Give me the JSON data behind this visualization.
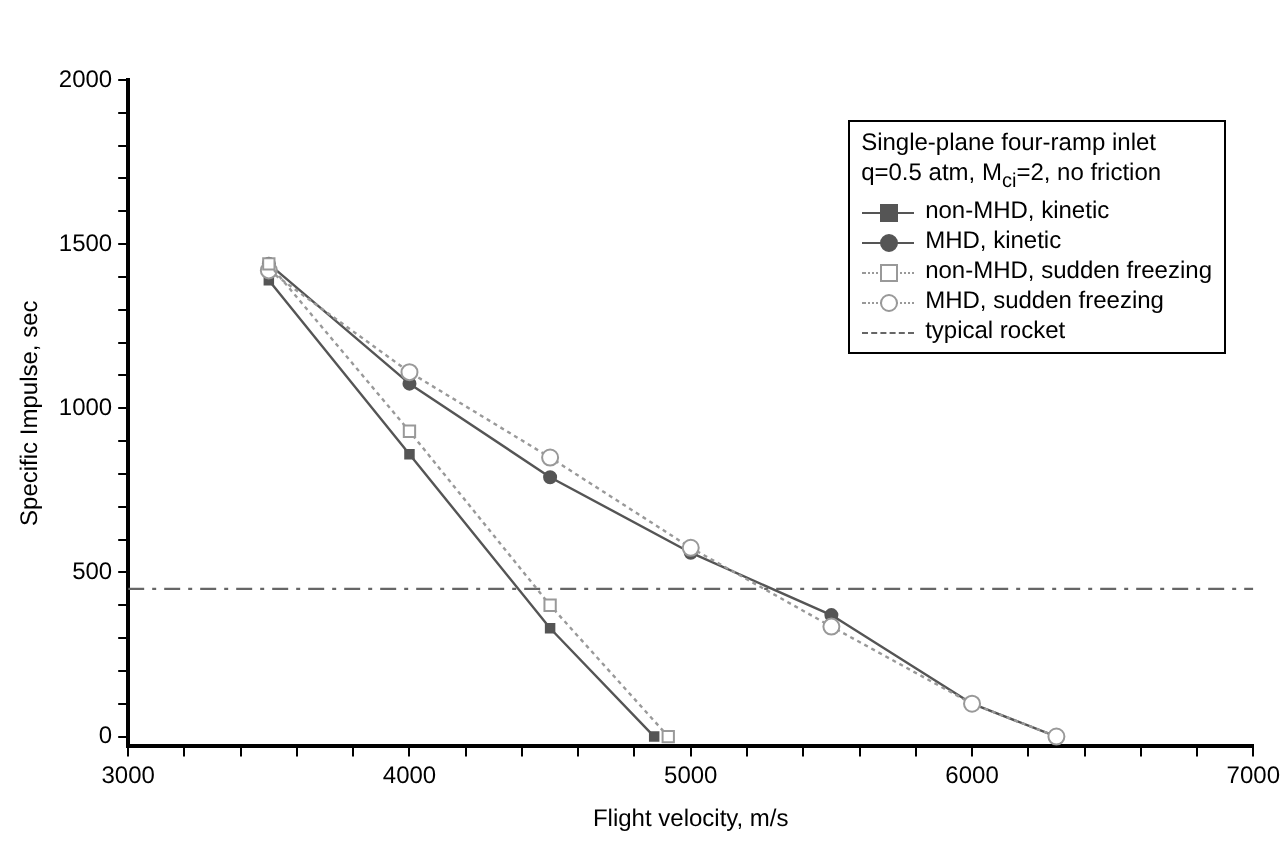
{
  "chart_data": {
    "type": "line",
    "xlabel": "Flight velocity, m/s",
    "ylabel": "Specific Impulse, sec",
    "legend_title": "Single-plane four-ramp inlet\nq=0.5 atm, M$_{ci}$=2, no friction",
    "legend": "top right",
    "grid": false,
    "xlim": [
      3000,
      7000
    ],
    "ylim": [
      -30,
      2000
    ],
    "xticks": [
      3000,
      {
        "value": 3200,
        "label": null
      },
      {
        "value": 3400,
        "label": null
      },
      {
        "value": 3600,
        "label": null
      },
      {
        "value": 3800,
        "label": null
      },
      4000,
      {
        "value": 4200,
        "label": null
      },
      {
        "value": 4400,
        "label": null
      },
      {
        "value": 4600,
        "label": null
      },
      {
        "value": 4800,
        "label": null
      },
      5000,
      {
        "value": 5200,
        "label": null
      },
      {
        "value": 5400,
        "label": null
      },
      {
        "value": 5600,
        "label": null
      },
      {
        "value": 5800,
        "label": null
      },
      6000,
      {
        "value": 6200,
        "label": null
      },
      {
        "value": 6400,
        "label": null
      },
      {
        "value": 6600,
        "label": null
      },
      {
        "value": 6800,
        "label": null
      },
      7000
    ],
    "yticks": [
      0,
      {
        "value": 100,
        "label": null
      },
      {
        "value": 200,
        "label": null
      },
      {
        "value": 300,
        "label": null
      },
      {
        "value": 400,
        "label": null
      },
      500,
      {
        "value": 600,
        "label": null
      },
      {
        "value": 700,
        "label": null
      },
      {
        "value": 800,
        "label": null
      },
      {
        "value": 900,
        "label": null
      },
      1000,
      {
        "value": 1100,
        "label": null
      },
      {
        "value": 1200,
        "label": null
      },
      {
        "value": 1300,
        "label": null
      },
      {
        "value": 1400,
        "label": null
      },
      1500,
      {
        "value": 1600,
        "label": null
      },
      {
        "value": 1700,
        "label": null
      },
      {
        "value": 1800,
        "label": null
      },
      {
        "value": 1900,
        "label": null
      },
      2000
    ],
    "series": [
      {
        "name": "non-MHD, kinetic",
        "color": "#555555",
        "marker": "square",
        "line_style": "solid",
        "x": [
          3500,
          4000,
          4500,
          4870
        ],
        "values": [
          1390,
          860,
          330,
          0
        ]
      },
      {
        "name": "MHD, kinetic",
        "color": "#555555",
        "marker": "circle",
        "line_style": "solid",
        "x": [
          3500,
          4000,
          4500,
          5000,
          5500,
          6000,
          6300
        ],
        "values": [
          1440,
          1075,
          790,
          560,
          370,
          100,
          0
        ]
      },
      {
        "name": "non-MHD, sudden freezing",
        "color": "#999999",
        "marker": "square",
        "line_style": "dotted",
        "x": [
          3500,
          4000,
          4500,
          4920
        ],
        "values": [
          1440,
          930,
          400,
          0
        ]
      },
      {
        "name": "MHD, sudden freezing",
        "color": "#999999",
        "marker": "circle",
        "line_style": "dotted",
        "x": [
          3500,
          4000,
          4500,
          5000,
          5500,
          6000,
          6300
        ],
        "values": [
          1420,
          1110,
          850,
          575,
          335,
          100,
          0
        ]
      },
      {
        "name": "typical rocket",
        "color": "#666666",
        "marker": "none",
        "line_style": "dashed",
        "x": [
          3000,
          7000
        ],
        "values": [
          450,
          450
        ]
      }
    ]
  }
}
